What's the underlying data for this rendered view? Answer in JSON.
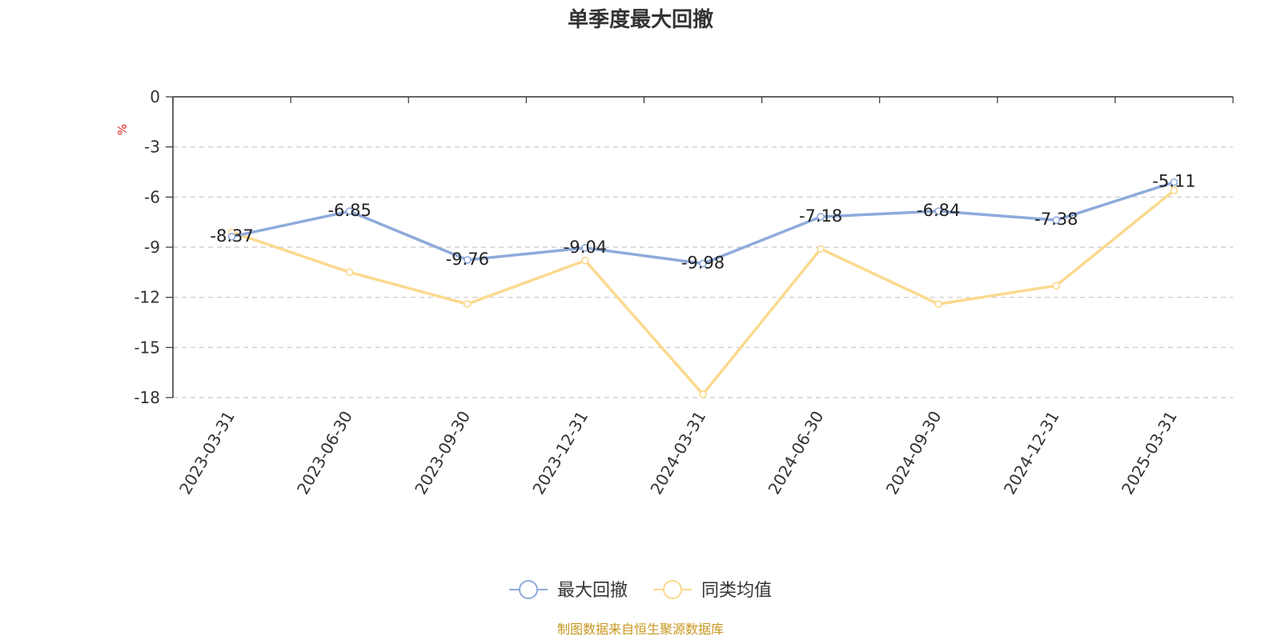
{
  "chart_data": {
    "type": "line",
    "title": "单季度最大回撤",
    "ylabel": "%",
    "ylim": [
      -18,
      0
    ],
    "yticks": [
      0,
      -3,
      -6,
      -9,
      -12,
      -15,
      -18
    ],
    "grid": true,
    "legend_position": "bottom-center",
    "categories": [
      "2023-03-31",
      "2023-06-30",
      "2023-09-30",
      "2023-12-31",
      "2024-03-31",
      "2024-06-30",
      "2024-09-30",
      "2024-12-31",
      "2025-03-31"
    ],
    "series": [
      {
        "name": "最大回撤",
        "color": "#8eaadb",
        "show_labels": true,
        "values": [
          -8.37,
          -6.85,
          -9.76,
          -9.04,
          -9.98,
          -7.18,
          -6.84,
          -7.38,
          -5.11
        ]
      },
      {
        "name": "同类均值",
        "color": "#fbd98e",
        "show_labels": false,
        "values": [
          -8.1,
          -10.5,
          -12.4,
          -9.8,
          -17.8,
          -9.1,
          -12.4,
          -11.3,
          -5.6
        ]
      }
    ],
    "source": "制图数据来自恒生聚源数据库"
  }
}
